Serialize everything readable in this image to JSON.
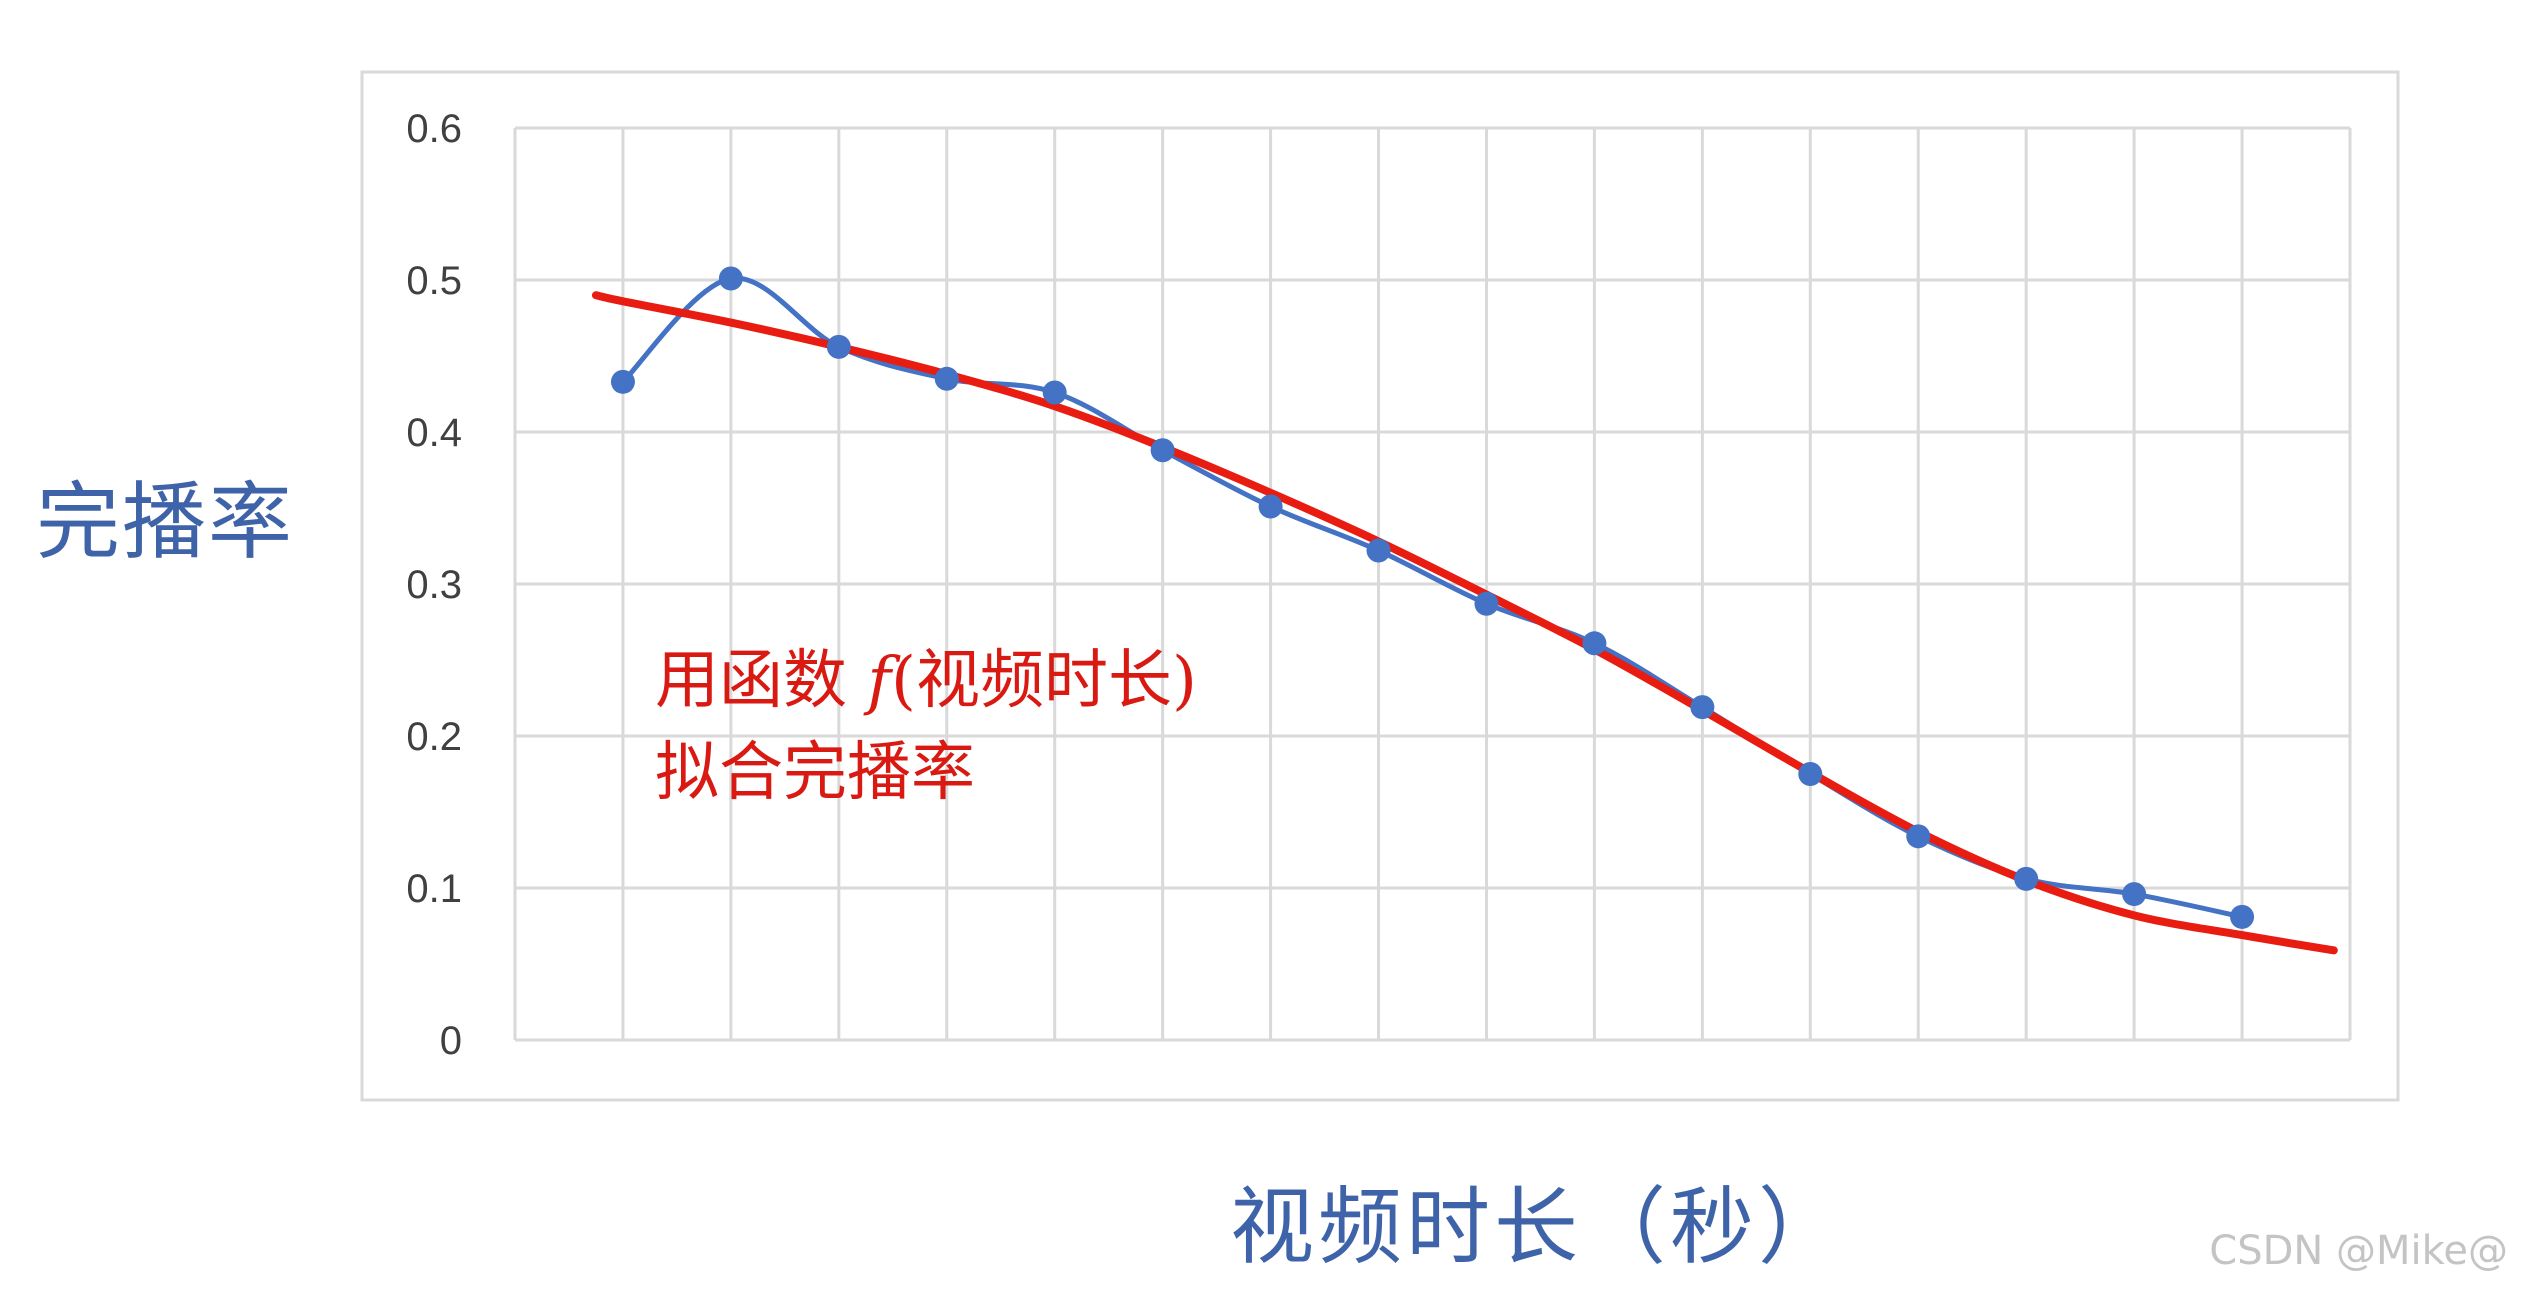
{
  "chart_data": {
    "type": "line",
    "title": "",
    "xlabel": "视频时长（秒）",
    "ylabel": "完播率",
    "x": [
      1,
      2,
      3,
      4,
      5,
      6,
      7,
      8,
      9,
      10,
      11,
      12,
      13,
      14,
      15,
      16
    ],
    "xlim": [
      0,
      17
    ],
    "ylim": [
      0,
      0.6
    ],
    "yticks": [
      "0",
      "0.1",
      "0.2",
      "0.3",
      "0.4",
      "0.5",
      "0.6"
    ],
    "grid": true,
    "legend": "none",
    "series": [
      {
        "color": "#4472c4",
        "style": "smoothed line with markers",
        "values": [
          0.433,
          0.501,
          0.456,
          0.435,
          0.426,
          0.388,
          0.351,
          0.322,
          0.287,
          0.261,
          0.219,
          0.175,
          0.134,
          0.106,
          0.096,
          0.081
        ]
      },
      {
        "color": "#e81c10",
        "style": "fitted curve",
        "x": [
          0.75,
          1,
          2,
          3,
          4,
          5,
          6,
          7,
          8,
          9,
          10,
          11,
          12,
          13,
          14,
          15,
          16,
          16.85
        ],
        "values": [
          0.49,
          0.486,
          0.472,
          0.456,
          0.438,
          0.417,
          0.39,
          0.36,
          0.328,
          0.293,
          0.257,
          0.217,
          0.176,
          0.137,
          0.105,
          0.082,
          0.069,
          0.059
        ]
      }
    ],
    "annotation": {
      "line1_prefix": "用函数 ",
      "line1_f": "f",
      "line1_suffix": "(视频时长)",
      "line2": "拟合完播率",
      "color": "#d91a12"
    }
  },
  "watermark": "CSDN @Mike@"
}
